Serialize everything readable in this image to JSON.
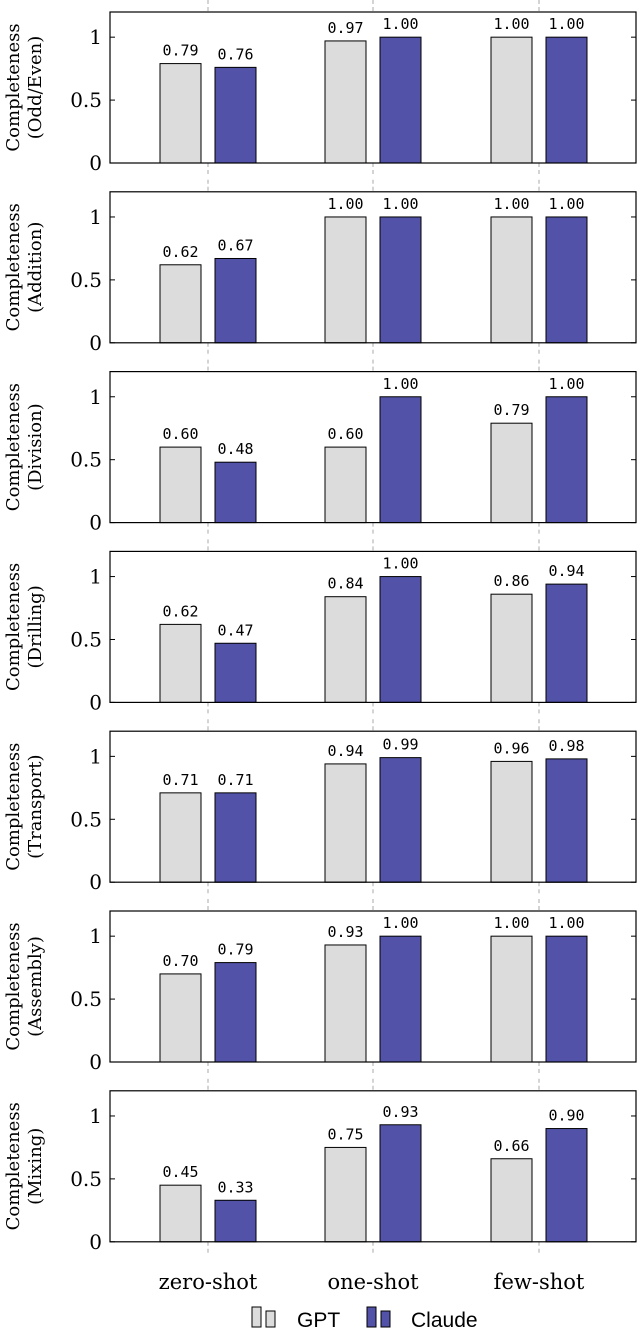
{
  "chart_data": {
    "type": "bar",
    "categories": [
      "zero-shot",
      "one-shot",
      "few-shot"
    ],
    "ylim": [
      0,
      1.2
    ],
    "yticks": [
      0,
      0.5,
      1
    ],
    "ytick_labels": [
      "0",
      "0.5",
      "1"
    ],
    "colors": {
      "GPT": "#dcdcdc",
      "Claude": "#5252a8"
    },
    "legend": {
      "placement": "bottom-center",
      "entries": [
        "GPT",
        "Claude"
      ]
    },
    "panels": [
      {
        "ylabel": [
          "Completeness",
          "(Odd/Even)"
        ],
        "series": [
          {
            "name": "GPT",
            "values": [
              0.79,
              0.97,
              1.0
            ],
            "labels": [
              "0.79",
              "0.97",
              "1.00"
            ]
          },
          {
            "name": "Claude",
            "values": [
              0.76,
              1.0,
              1.0
            ],
            "labels": [
              "0.76",
              "1.00",
              "1.00"
            ]
          }
        ]
      },
      {
        "ylabel": [
          "Completeness",
          "(Addition)"
        ],
        "series": [
          {
            "name": "GPT",
            "values": [
              0.62,
              1.0,
              1.0
            ],
            "labels": [
              "0.62",
              "1.00",
              "1.00"
            ]
          },
          {
            "name": "Claude",
            "values": [
              0.67,
              1.0,
              1.0
            ],
            "labels": [
              "0.67",
              "1.00",
              "1.00"
            ]
          }
        ]
      },
      {
        "ylabel": [
          "Completeness",
          "(Division)"
        ],
        "series": [
          {
            "name": "GPT",
            "values": [
              0.6,
              0.6,
              0.79
            ],
            "labels": [
              "0.60",
              "0.60",
              "0.79"
            ]
          },
          {
            "name": "Claude",
            "values": [
              0.48,
              1.0,
              1.0
            ],
            "labels": [
              "0.48",
              "1.00",
              "1.00"
            ]
          }
        ]
      },
      {
        "ylabel": [
          "Completeness",
          "(Drilling)"
        ],
        "series": [
          {
            "name": "GPT",
            "values": [
              0.62,
              0.84,
              0.86
            ],
            "labels": [
              "0.62",
              "0.84",
              "0.86"
            ]
          },
          {
            "name": "Claude",
            "values": [
              0.47,
              1.0,
              0.94
            ],
            "labels": [
              "0.47",
              "1.00",
              "0.94"
            ]
          }
        ]
      },
      {
        "ylabel": [
          "Completeness",
          "(Transport)"
        ],
        "series": [
          {
            "name": "GPT",
            "values": [
              0.71,
              0.94,
              0.96
            ],
            "labels": [
              "0.71",
              "0.94",
              "0.96"
            ]
          },
          {
            "name": "Claude",
            "values": [
              0.71,
              0.99,
              0.98
            ],
            "labels": [
              "0.71",
              "0.99",
              "0.98"
            ]
          }
        ]
      },
      {
        "ylabel": [
          "Completeness",
          "(Assembly)"
        ],
        "series": [
          {
            "name": "GPT",
            "values": [
              0.7,
              0.93,
              1.0
            ],
            "labels": [
              "0.70",
              "0.93",
              "1.00"
            ]
          },
          {
            "name": "Claude",
            "values": [
              0.79,
              1.0,
              1.0
            ],
            "labels": [
              "0.79",
              "1.00",
              "1.00"
            ]
          }
        ]
      },
      {
        "ylabel": [
          "Completeness",
          "(Mixing)"
        ],
        "series": [
          {
            "name": "GPT",
            "values": [
              0.45,
              0.75,
              0.66
            ],
            "labels": [
              "0.45",
              "0.75",
              "0.66"
            ]
          },
          {
            "name": "Claude",
            "values": [
              0.33,
              0.93,
              0.9
            ],
            "labels": [
              "0.33",
              "0.93",
              "0.90"
            ]
          }
        ]
      }
    ]
  }
}
